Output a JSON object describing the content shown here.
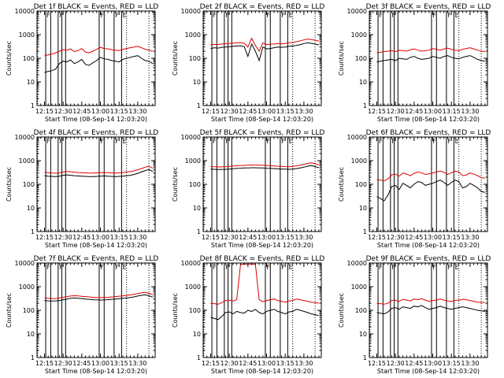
{
  "figure": {
    "xlabel": "Start Time (08-Sep-14 12:03:20)",
    "ylabel": "Counts/sec",
    "x_ticks": [
      "12:15",
      "12:30",
      "12:45",
      "13:00",
      "13:15",
      "13:30"
    ],
    "y_ticks": [
      "1",
      "10",
      "100",
      "1000",
      "10000"
    ],
    "series_colors": {
      "events": "#000000",
      "lld": "#e00000"
    }
  },
  "chart_data": [
    {
      "type": "line",
      "title": "Det 1f BLACK = Events, RED = LLD",
      "x_minutes": [
        12,
        15,
        18,
        21,
        24,
        27,
        30,
        33,
        36,
        39,
        42,
        45,
        48,
        51,
        54,
        57,
        60,
        63,
        66,
        69,
        72,
        75,
        78,
        81,
        84,
        87,
        90,
        93,
        96,
        99
      ],
      "series": [
        {
          "name": "Events",
          "values": [
            25,
            28,
            30,
            35,
            60,
            75,
            70,
            85,
            60,
            70,
            90,
            55,
            50,
            65,
            80,
            110,
            95,
            90,
            80,
            75,
            70,
            90,
            100,
            110,
            120,
            130,
            100,
            80,
            75,
            60
          ]
        },
        {
          "name": "LLD",
          "values": [
            130,
            140,
            150,
            170,
            200,
            230,
            220,
            250,
            190,
            210,
            260,
            180,
            170,
            200,
            240,
            290,
            260,
            250,
            230,
            220,
            210,
            240,
            260,
            280,
            300,
            320,
            280,
            240,
            220,
            200
          ]
        }
      ],
      "ylim": [
        1,
        10000
      ],
      "xlim": [
        6,
        101
      ]
    },
    {
      "type": "line",
      "title": "Det 2f BLACK = Events, RED = LLD",
      "x_minutes": [
        12,
        15,
        18,
        21,
        24,
        27,
        30,
        33,
        36,
        39,
        42,
        45,
        48,
        51,
        54,
        57,
        60,
        63,
        66,
        69,
        72,
        75,
        78,
        81,
        84,
        87,
        90,
        93,
        96,
        99
      ],
      "series": [
        {
          "name": "Events",
          "values": [
            260,
            280,
            270,
            290,
            300,
            310,
            320,
            330,
            340,
            310,
            120,
            400,
            200,
            80,
            300,
            250,
            260,
            280,
            300,
            290,
            300,
            320,
            330,
            350,
            380,
            420,
            450,
            430,
            400,
            370
          ]
        },
        {
          "name": "LLD",
          "values": [
            370,
            390,
            380,
            400,
            410,
            420,
            440,
            450,
            460,
            430,
            300,
            700,
            350,
            200,
            450,
            380,
            390,
            400,
            420,
            410,
            420,
            450,
            470,
            500,
            550,
            600,
            650,
            620,
            580,
            540
          ]
        }
      ],
      "ylim": [
        1,
        10000
      ],
      "xlim": [
        6,
        101
      ]
    },
    {
      "type": "line",
      "title": "Det 3f BLACK = Events, RED = LLD",
      "x_minutes": [
        12,
        15,
        18,
        21,
        24,
        27,
        30,
        33,
        36,
        39,
        42,
        45,
        48,
        51,
        54,
        57,
        60,
        63,
        66,
        69,
        72,
        75,
        78,
        81,
        84,
        87,
        90,
        93,
        96,
        99
      ],
      "series": [
        {
          "name": "Events",
          "values": [
            70,
            75,
            80,
            85,
            90,
            80,
            100,
            95,
            90,
            110,
            120,
            100,
            90,
            95,
            100,
            120,
            110,
            100,
            120,
            130,
            110,
            100,
            95,
            110,
            120,
            130,
            110,
            90,
            80,
            75
          ]
        },
        {
          "name": "LLD",
          "values": [
            170,
            180,
            190,
            200,
            210,
            190,
            220,
            210,
            200,
            230,
            250,
            220,
            200,
            210,
            220,
            260,
            240,
            220,
            250,
            270,
            240,
            220,
            210,
            240,
            260,
            280,
            250,
            220,
            200,
            190
          ]
        }
      ],
      "ylim": [
        1,
        10000
      ],
      "xlim": [
        6,
        101
      ]
    },
    {
      "type": "line",
      "title": "Det 4f BLACK = Events, RED = LLD",
      "x_minutes": [
        12,
        15,
        18,
        21,
        24,
        27,
        30,
        33,
        36,
        39,
        42,
        45,
        48,
        51,
        54,
        57,
        60,
        63,
        66,
        69,
        72,
        75,
        78,
        81,
        84,
        87,
        90,
        93,
        96,
        99
      ],
      "series": [
        {
          "name": "Events",
          "values": [
            230,
            220,
            215,
            210,
            220,
            240,
            250,
            240,
            230,
            225,
            220,
            215,
            210,
            210,
            215,
            220,
            225,
            220,
            215,
            210,
            215,
            220,
            230,
            240,
            260,
            290,
            330,
            380,
            420,
            350
          ]
        },
        {
          "name": "LLD",
          "values": [
            320,
            310,
            300,
            295,
            305,
            330,
            350,
            340,
            325,
            315,
            310,
            305,
            300,
            300,
            305,
            310,
            315,
            310,
            305,
            300,
            305,
            315,
            330,
            345,
            370,
            410,
            460,
            530,
            580,
            480
          ]
        }
      ],
      "ylim": [
        1,
        10000
      ],
      "xlim": [
        6,
        101
      ]
    },
    {
      "type": "line",
      "title": "Det 5f BLACK = Events, RED = LLD",
      "x_minutes": [
        12,
        15,
        18,
        21,
        24,
        27,
        30,
        33,
        36,
        39,
        42,
        45,
        48,
        51,
        54,
        57,
        60,
        63,
        66,
        69,
        72,
        75,
        78,
        81,
        84,
        87,
        90,
        93,
        96,
        99
      ],
      "series": [
        {
          "name": "Events",
          "values": [
            440,
            430,
            420,
            425,
            430,
            440,
            455,
            470,
            480,
            490,
            495,
            500,
            500,
            495,
            490,
            480,
            470,
            460,
            450,
            440,
            435,
            430,
            440,
            460,
            490,
            530,
            580,
            620,
            560,
            500
          ]
        },
        {
          "name": "LLD",
          "values": [
            560,
            550,
            540,
            545,
            555,
            570,
            590,
            610,
            620,
            630,
            640,
            650,
            650,
            645,
            640,
            625,
            610,
            595,
            580,
            570,
            560,
            555,
            570,
            600,
            640,
            700,
            760,
            820,
            740,
            660
          ]
        }
      ],
      "ylim": [
        1,
        10000
      ],
      "xlim": [
        6,
        101
      ]
    },
    {
      "type": "line",
      "title": "Det 6f BLACK = Events, RED = LLD",
      "x_minutes": [
        12,
        15,
        18,
        21,
        24,
        27,
        30,
        33,
        36,
        39,
        42,
        45,
        48,
        51,
        54,
        57,
        60,
        63,
        66,
        69,
        72,
        75,
        78,
        81,
        84,
        87,
        90,
        93,
        96,
        99
      ],
      "series": [
        {
          "name": "Events",
          "values": [
            30,
            25,
            20,
            35,
            80,
            90,
            60,
            110,
            90,
            70,
            100,
            130,
            120,
            90,
            100,
            110,
            130,
            150,
            120,
            90,
            120,
            150,
            130,
            70,
            80,
            110,
            90,
            70,
            50,
            45
          ]
        },
        {
          "name": "LLD",
          "values": [
            160,
            150,
            140,
            170,
            250,
            270,
            220,
            300,
            270,
            230,
            290,
            330,
            310,
            260,
            280,
            300,
            330,
            360,
            320,
            260,
            310,
            360,
            330,
            230,
            250,
            300,
            270,
            230,
            190,
            180
          ]
        }
      ],
      "ylim": [
        1,
        10000
      ],
      "xlim": [
        6,
        101
      ]
    },
    {
      "type": "line",
      "title": "Det 7f BLACK = Events, RED = LLD",
      "x_minutes": [
        12,
        15,
        18,
        21,
        24,
        27,
        30,
        33,
        36,
        39,
        42,
        45,
        48,
        51,
        54,
        57,
        60,
        63,
        66,
        69,
        72,
        75,
        78,
        81,
        84,
        87,
        90,
        93,
        96,
        99
      ],
      "series": [
        {
          "name": "Events",
          "values": [
            260,
            250,
            245,
            250,
            260,
            280,
            300,
            320,
            330,
            320,
            310,
            300,
            290,
            280,
            275,
            270,
            275,
            280,
            290,
            300,
            310,
            320,
            330,
            350,
            370,
            400,
            430,
            450,
            410,
            360
          ]
        },
        {
          "name": "LLD",
          "values": [
            330,
            320,
            310,
            315,
            330,
            355,
            380,
            400,
            415,
            405,
            390,
            380,
            370,
            355,
            350,
            345,
            350,
            355,
            365,
            380,
            395,
            405,
            420,
            445,
            470,
            510,
            545,
            570,
            520,
            460
          ]
        }
      ],
      "ylim": [
        1,
        10000
      ],
      "xlim": [
        6,
        101
      ]
    },
    {
      "type": "line",
      "title": "Det 8f BLACK = Events, RED = LLD",
      "x_minutes": [
        12,
        15,
        18,
        21,
        24,
        27,
        30,
        33,
        36,
        39,
        42,
        45,
        48,
        51,
        54,
        57,
        60,
        63,
        66,
        69,
        72,
        75,
        78,
        81,
        84,
        87,
        90,
        93,
        96,
        99
      ],
      "series": [
        {
          "name": "Events",
          "values": [
            50,
            45,
            40,
            55,
            80,
            85,
            70,
            90,
            80,
            75,
            100,
            90,
            110,
            80,
            70,
            90,
            100,
            110,
            90,
            80,
            70,
            85,
            90,
            110,
            100,
            90,
            80,
            70,
            65,
            60
          ]
        },
        {
          "name": "LLD",
          "values": [
            200,
            190,
            180,
            210,
            260,
            270,
            250,
            280,
            8500,
            9000,
            9000,
            9000,
            9000,
            280,
            230,
            260,
            280,
            300,
            260,
            240,
            220,
            250,
            260,
            300,
            280,
            260,
            240,
            220,
            210,
            200
          ]
        }
      ],
      "ylim": [
        1,
        10000
      ],
      "xlim": [
        6,
        101
      ]
    },
    {
      "type": "line",
      "title": "Det 9f BLACK = Events, RED = LLD",
      "x_minutes": [
        12,
        15,
        18,
        21,
        24,
        27,
        30,
        33,
        36,
        39,
        42,
        45,
        48,
        51,
        54,
        57,
        60,
        63,
        66,
        69,
        72,
        75,
        78,
        81,
        84,
        87,
        90,
        93,
        96,
        99
      ],
      "series": [
        {
          "name": "Events",
          "values": [
            80,
            75,
            70,
            85,
            120,
            130,
            110,
            140,
            130,
            120,
            150,
            140,
            160,
            130,
            110,
            120,
            130,
            150,
            130,
            120,
            110,
            120,
            130,
            140,
            130,
            120,
            110,
            100,
            95,
            90
          ]
        },
        {
          "name": "LLD",
          "values": [
            200,
            190,
            180,
            200,
            260,
            270,
            240,
            290,
            270,
            250,
            300,
            280,
            310,
            270,
            240,
            260,
            270,
            300,
            270,
            250,
            240,
            260,
            270,
            290,
            280,
            260,
            240,
            220,
            215,
            210
          ]
        }
      ],
      "ylim": [
        1,
        10000
      ],
      "xlim": [
        6,
        101
      ]
    }
  ]
}
